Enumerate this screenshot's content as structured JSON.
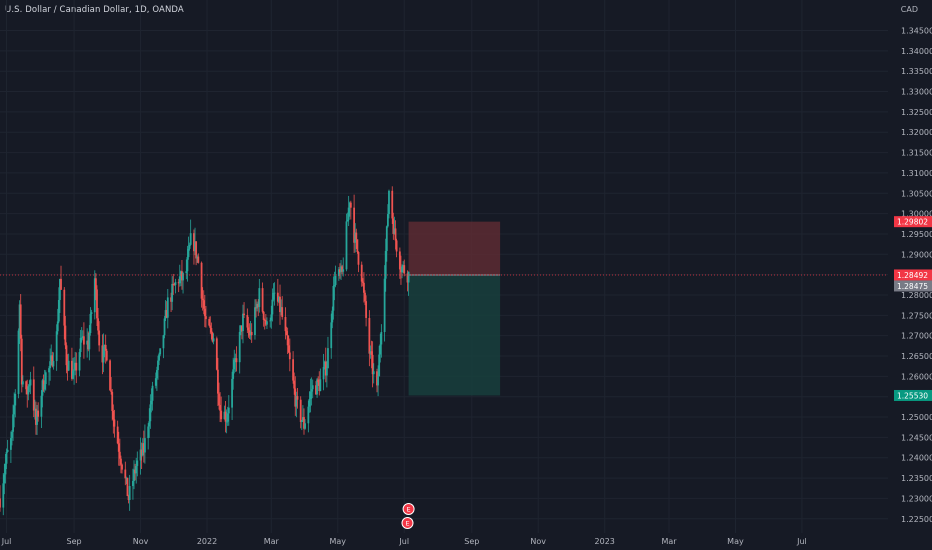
{
  "header": {
    "title": "U.S. Dollar / Canadian Dollar, 1D, OANDA",
    "currency": "CAD"
  },
  "colors": {
    "background": "#161a25",
    "up": "#26a69a",
    "down": "#ef5350",
    "current_line": "#f23645",
    "stop_zone": "#5c2b33",
    "target_zone": "#17403d",
    "grid": "#1f2430",
    "axis_text": "#b2b5be"
  },
  "chart_data": {
    "type": "candlestick",
    "symbol": "USD/CAD",
    "interval": "1D",
    "source": "OANDA",
    "ylim": [
      1.2215,
      1.3525
    ],
    "xlim": [
      "2021-06-25",
      "2023-09-18"
    ],
    "y_ticks": [
      "1.34500",
      "1.34000",
      "1.33500",
      "1.33000",
      "1.32500",
      "1.32000",
      "1.31500",
      "1.31000",
      "1.30500",
      "1.30000",
      "1.29500",
      "1.29000",
      "1.28500",
      "1.28000",
      "1.27500",
      "1.27000",
      "1.26500",
      "1.26000",
      "1.25500",
      "1.25000",
      "1.24500",
      "1.24000",
      "1.23500",
      "1.23000",
      "1.22500"
    ],
    "x_ticks": [
      {
        "label": "Jul",
        "date": "2021-07-01"
      },
      {
        "label": "Sep",
        "date": "2021-09-01"
      },
      {
        "label": "Nov",
        "date": "2021-11-01"
      },
      {
        "label": "2022",
        "date": "2022-01-01"
      },
      {
        "label": "Mar",
        "date": "2022-03-01"
      },
      {
        "label": "May",
        "date": "2022-05-01"
      },
      {
        "label": "Jul",
        "date": "2022-07-01"
      },
      {
        "label": "Sep",
        "date": "2022-09-01"
      },
      {
        "label": "Nov",
        "date": "2022-11-01"
      },
      {
        "label": "2023",
        "date": "2023-01-01"
      },
      {
        "label": "Mar",
        "date": "2023-03-01"
      },
      {
        "label": "May",
        "date": "2023-05-01"
      },
      {
        "label": "Jul",
        "date": "2023-07-01"
      }
    ],
    "candles_start": "2021-06-25",
    "candles_end": "2022-07-05",
    "close_path": [
      [
        "2021-06-25",
        1.23
      ],
      [
        "2021-07-01",
        1.24
      ],
      [
        "2021-07-06",
        1.245
      ],
      [
        "2021-07-10",
        1.26
      ],
      [
        "2021-07-13",
        1.278
      ],
      [
        "2021-07-15",
        1.26
      ],
      [
        "2021-07-19",
        1.255
      ],
      [
        "2021-07-23",
        1.26
      ],
      [
        "2021-07-28",
        1.248
      ],
      [
        "2021-08-02",
        1.256
      ],
      [
        "2021-08-05",
        1.26
      ],
      [
        "2021-08-10",
        1.262
      ],
      [
        "2021-08-16",
        1.27
      ],
      [
        "2021-08-19",
        1.284
      ],
      [
        "2021-08-25",
        1.264
      ],
      [
        "2021-09-01",
        1.26
      ],
      [
        "2021-09-08",
        1.269
      ],
      [
        "2021-09-14",
        1.268
      ],
      [
        "2021-09-20",
        1.284
      ],
      [
        "2021-09-25",
        1.265
      ],
      [
        "2021-10-01",
        1.266
      ],
      [
        "2021-10-08",
        1.248
      ],
      [
        "2021-10-14",
        1.24
      ],
      [
        "2021-10-21",
        1.23
      ],
      [
        "2021-10-28",
        1.238
      ],
      [
        "2021-11-04",
        1.242
      ],
      [
        "2021-11-12",
        1.256
      ],
      [
        "2021-11-19",
        1.265
      ],
      [
        "2021-11-26",
        1.278
      ],
      [
        "2021-12-05",
        1.284
      ],
      [
        "2021-12-12",
        1.284
      ],
      [
        "2021-12-18",
        1.295
      ],
      [
        "2021-12-24",
        1.288
      ],
      [
        "2021-12-31",
        1.272
      ],
      [
        "2022-01-07",
        1.27
      ],
      [
        "2022-01-13",
        1.252
      ],
      [
        "2022-01-19",
        1.25
      ],
      [
        "2022-01-26",
        1.262
      ],
      [
        "2022-02-03",
        1.274
      ],
      [
        "2022-02-10",
        1.27
      ],
      [
        "2022-02-18",
        1.28
      ],
      [
        "2022-02-25",
        1.272
      ],
      [
        "2022-03-04",
        1.28
      ],
      [
        "2022-03-10",
        1.276
      ],
      [
        "2022-03-17",
        1.265
      ],
      [
        "2022-03-24",
        1.253
      ],
      [
        "2022-03-31",
        1.248
      ],
      [
        "2022-04-07",
        1.257
      ],
      [
        "2022-04-14",
        1.258
      ],
      [
        "2022-04-21",
        1.263
      ],
      [
        "2022-04-28",
        1.284
      ],
      [
        "2022-05-05",
        1.285
      ],
      [
        "2022-05-12",
        1.304
      ],
      [
        "2022-05-16",
        1.295
      ],
      [
        "2022-05-23",
        1.285
      ],
      [
        "2022-05-30",
        1.266
      ],
      [
        "2022-06-06",
        1.256
      ],
      [
        "2022-06-10",
        1.273
      ],
      [
        "2022-06-15",
        1.295
      ],
      [
        "2022-06-17",
        1.306
      ],
      [
        "2022-06-22",
        1.295
      ],
      [
        "2022-06-28",
        1.287
      ],
      [
        "2022-07-05",
        1.285
      ]
    ],
    "price_lines": {
      "stop": 1.29802,
      "entry": 1.28492,
      "current": 1.28475,
      "target": 1.2553
    },
    "position_box": {
      "start": "2022-07-05",
      "end": "2022-09-27"
    },
    "event_markers": [
      {
        "date": "2022-07-05",
        "label": "E",
        "y_offset": 1
      },
      {
        "date": "2022-07-04",
        "label": "E",
        "y_offset": 2
      }
    ]
  },
  "axis_badges": {
    "stop": "1.29802",
    "entry": "1.28492",
    "current": "1.28475",
    "target": "1.25530"
  }
}
